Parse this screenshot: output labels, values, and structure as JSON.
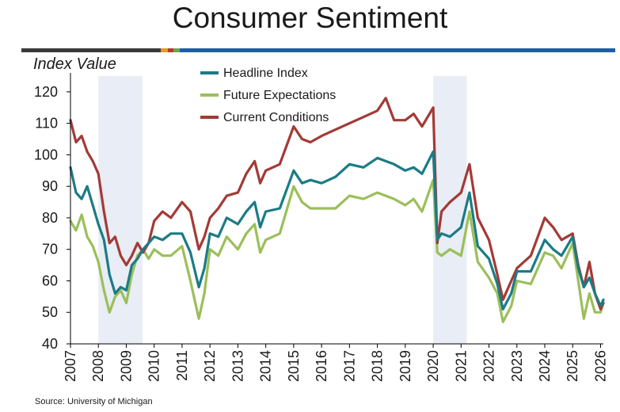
{
  "colors": {
    "headline": "#1b7b86",
    "future": "#9bbf59",
    "current": "#a33a36",
    "recession": "#e9edf5",
    "axis": "#000000",
    "rule_dark": "#3a3a3a",
    "rule_blue": "#1f5da8",
    "rule_orange": "#e69a2a",
    "rule_red": "#b43b2b",
    "rule_green": "#6aa84f"
  },
  "chart_data": {
    "type": "line",
    "title": "Consumer Sentiment",
    "ylabel": "Index Value",
    "xlabel": "",
    "source": "Source: University of Michigan",
    "xlim": [
      2007.0,
      2026.1
    ],
    "ylim": [
      40,
      125
    ],
    "yticks": [
      40,
      50,
      60,
      70,
      80,
      90,
      100,
      110,
      120
    ],
    "xticks": [
      "2007",
      "2008",
      "2009",
      "2010",
      "2011",
      "2012",
      "2013",
      "2014",
      "2015",
      "2016",
      "2017",
      "2018",
      "2019",
      "2020",
      "2021",
      "2022",
      "2023",
      "2024",
      "2025",
      "2026"
    ],
    "recessions": [
      [
        2008.0,
        2009.58
      ],
      [
        2020.0,
        2021.2
      ]
    ],
    "legend_position": "top-center",
    "series": [
      {
        "name": "Headline Index",
        "color_key": "headline",
        "x": [
          2007.0,
          2007.2,
          2007.4,
          2007.6,
          2007.8,
          2008.0,
          2008.2,
          2008.4,
          2008.6,
          2008.8,
          2009.0,
          2009.2,
          2009.4,
          2009.6,
          2009.8,
          2010.0,
          2010.3,
          2010.6,
          2011.0,
          2011.3,
          2011.6,
          2011.8,
          2012.0,
          2012.3,
          2012.6,
          2013.0,
          2013.3,
          2013.6,
          2013.8,
          2014.0,
          2014.5,
          2015.0,
          2015.3,
          2015.6,
          2016.0,
          2016.5,
          2017.0,
          2017.5,
          2018.0,
          2018.3,
          2018.6,
          2019.0,
          2019.3,
          2019.6,
          2020.0,
          2020.15,
          2020.3,
          2020.6,
          2021.0,
          2021.3,
          2021.6,
          2022.0,
          2022.3,
          2022.5,
          2022.8,
          2023.0,
          2023.5,
          2024.0,
          2024.3,
          2024.6,
          2025.0,
          2025.2,
          2025.4,
          2025.6,
          2025.8,
          2026.0,
          2026.1
        ],
        "values": [
          96,
          88,
          86,
          90,
          84,
          78,
          73,
          62,
          56,
          58,
          57,
          65,
          67,
          70,
          72,
          74,
          73,
          75,
          75,
          69,
          58,
          64,
          75,
          74,
          80,
          78,
          82,
          85,
          77,
          82,
          83,
          95,
          91,
          92,
          91,
          93,
          97,
          96,
          99,
          98,
          97,
          95,
          96,
          94,
          101,
          73,
          75,
          74,
          77,
          88,
          71,
          67,
          59,
          51,
          56,
          63,
          63,
          73,
          70,
          68,
          74,
          64,
          58,
          61,
          56,
          52,
          54
        ]
      },
      {
        "name": "Future Expectations",
        "color_key": "future",
        "x": [
          2007.0,
          2007.2,
          2007.4,
          2007.6,
          2007.8,
          2008.0,
          2008.2,
          2008.4,
          2008.6,
          2008.8,
          2009.0,
          2009.2,
          2009.4,
          2009.6,
          2009.8,
          2010.0,
          2010.3,
          2010.6,
          2011.0,
          2011.3,
          2011.6,
          2011.8,
          2012.0,
          2012.3,
          2012.6,
          2013.0,
          2013.3,
          2013.6,
          2013.8,
          2014.0,
          2014.5,
          2015.0,
          2015.3,
          2015.6,
          2016.0,
          2016.5,
          2017.0,
          2017.5,
          2018.0,
          2018.3,
          2018.6,
          2019.0,
          2019.3,
          2019.6,
          2020.0,
          2020.15,
          2020.3,
          2020.6,
          2021.0,
          2021.3,
          2021.6,
          2022.0,
          2022.3,
          2022.5,
          2022.8,
          2023.0,
          2023.5,
          2024.0,
          2024.3,
          2024.6,
          2025.0,
          2025.2,
          2025.4,
          2025.6,
          2025.8,
          2026.0,
          2026.1
        ],
        "values": [
          79,
          76,
          81,
          74,
          71,
          66,
          57,
          50,
          55,
          57,
          53,
          62,
          68,
          70,
          67,
          70,
          68,
          68,
          71,
          60,
          48,
          56,
          70,
          68,
          74,
          70,
          75,
          78,
          69,
          73,
          75,
          90,
          85,
          83,
          83,
          83,
          87,
          86,
          88,
          87,
          86,
          84,
          86,
          82,
          92,
          69,
          68,
          70,
          68,
          82,
          66,
          61,
          56,
          47,
          52,
          60,
          59,
          69,
          68,
          64,
          72,
          60,
          48,
          56,
          50,
          50,
          53
        ]
      },
      {
        "name": "Current Conditions",
        "color_key": "current",
        "x": [
          2007.0,
          2007.2,
          2007.4,
          2007.6,
          2007.8,
          2008.0,
          2008.2,
          2008.4,
          2008.6,
          2008.8,
          2009.0,
          2009.2,
          2009.4,
          2009.6,
          2009.8,
          2010.0,
          2010.3,
          2010.6,
          2011.0,
          2011.3,
          2011.6,
          2011.8,
          2012.0,
          2012.3,
          2012.6,
          2013.0,
          2013.3,
          2013.6,
          2013.8,
          2014.0,
          2014.5,
          2015.0,
          2015.3,
          2015.6,
          2016.0,
          2016.5,
          2017.0,
          2017.5,
          2018.0,
          2018.3,
          2018.6,
          2019.0,
          2019.3,
          2019.6,
          2020.0,
          2020.15,
          2020.3,
          2020.6,
          2021.0,
          2021.3,
          2021.6,
          2022.0,
          2022.3,
          2022.5,
          2022.8,
          2023.0,
          2023.5,
          2024.0,
          2024.3,
          2024.6,
          2025.0,
          2025.2,
          2025.4,
          2025.6,
          2025.8,
          2026.0,
          2026.1
        ],
        "values": [
          111,
          104,
          106,
          101,
          98,
          94,
          82,
          72,
          74,
          68,
          65,
          68,
          72,
          69,
          72,
          79,
          82,
          80,
          85,
          82,
          70,
          74,
          80,
          83,
          87,
          88,
          94,
          98,
          91,
          95,
          97,
          109,
          105,
          104,
          106,
          108,
          110,
          112,
          114,
          118,
          111,
          111,
          113,
          109,
          115,
          72,
          82,
          85,
          88,
          97,
          80,
          73,
          62,
          54,
          60,
          64,
          68,
          80,
          77,
          73,
          75,
          65,
          58,
          66,
          56,
          51,
          53
        ]
      }
    ]
  }
}
